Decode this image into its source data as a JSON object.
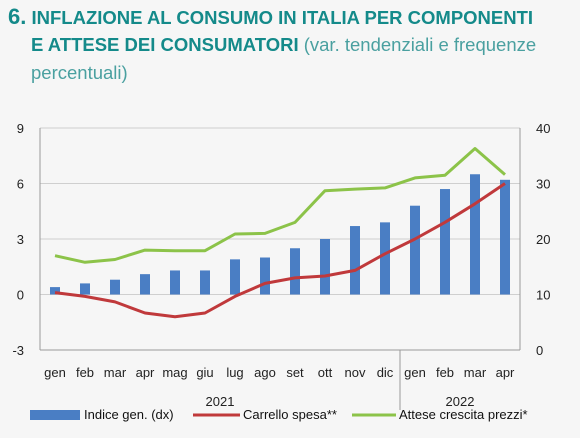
{
  "title": {
    "number": "6.",
    "line1": "INFLAZIONE AL CONSUMO IN ITALIA PER COMPONENTI",
    "line2_bold": "E ATTESE DEI CONSUMATORI",
    "line2_rest": "(var. tendenziali e frequenze",
    "line3": "percentuali)"
  },
  "colors": {
    "bars": "#4a7ec4",
    "carrello": "#c0393b",
    "attese": "#8cc349",
    "title": "#148a8a"
  },
  "chart_data": {
    "type": "bar",
    "categories": [
      "gen",
      "feb",
      "mar",
      "apr",
      "mag",
      "giu",
      "lug",
      "ago",
      "set",
      "ott",
      "nov",
      "dic",
      "gen",
      "feb",
      "mar",
      "apr"
    ],
    "years": [
      {
        "label": "2021",
        "from": 0,
        "to": 11
      },
      {
        "label": "2022",
        "from": 12,
        "to": 15
      }
    ],
    "series": [
      {
        "name": "Indice gen. (dx)",
        "kind": "bar",
        "axis": "left",
        "values": [
          0.4,
          0.6,
          0.8,
          1.1,
          1.3,
          1.3,
          1.9,
          2.0,
          2.5,
          3.0,
          3.7,
          3.9,
          4.8,
          5.7,
          6.5,
          6.2
        ]
      },
      {
        "name": "Carrello spesa**",
        "kind": "line",
        "axis": "left",
        "values": [
          0.1,
          -0.1,
          -0.4,
          -1.0,
          -1.2,
          -1.0,
          -0.1,
          0.6,
          0.9,
          1.0,
          1.3,
          2.2,
          3.0,
          3.9,
          4.9,
          6.0
        ]
      },
      {
        "name": "Attese crescita prezzi*",
        "kind": "line",
        "axis": "right",
        "values": [
          17.0,
          15.8,
          16.3,
          18.0,
          17.9,
          17.9,
          20.9,
          21.0,
          23.0,
          28.7,
          29.0,
          29.2,
          31.0,
          31.5,
          36.3,
          31.6
        ]
      }
    ],
    "left_axis": {
      "ylim": [
        -3,
        9
      ],
      "ticks": [
        -3,
        0,
        3,
        6,
        9
      ]
    },
    "right_axis": {
      "ylim": [
        0,
        40
      ],
      "ticks": [
        0,
        10,
        20,
        30,
        40
      ]
    },
    "grid": true,
    "legend_position": "bottom"
  }
}
